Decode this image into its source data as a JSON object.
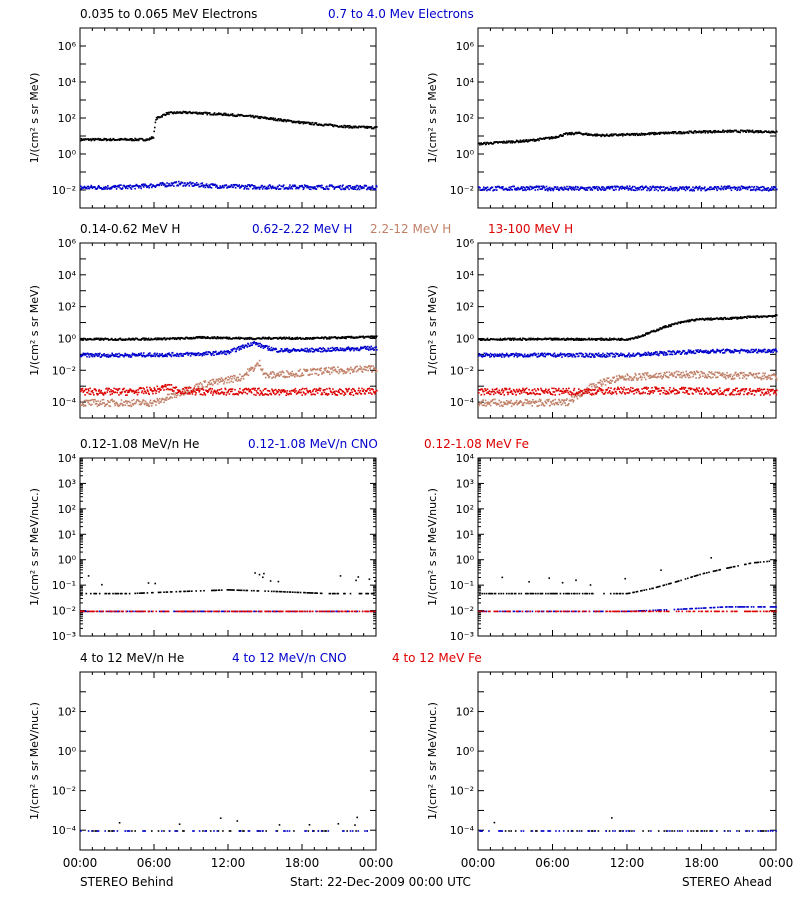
{
  "colors": {
    "black": "#000000",
    "blue": "#0000cc",
    "tan": "#c08068",
    "red": "#dd0000",
    "magenta": "#990099"
  },
  "x_ticks": [
    "00:00",
    "06:00",
    "12:00",
    "18:00",
    "00:00"
  ],
  "footer": {
    "left": "STEREO Behind",
    "center": "Start: 22-Dec-2009 00:00 UTC",
    "right": "STEREO Ahead"
  },
  "rows": [
    {
      "ylabel": "1/(cm² s sr MeV)",
      "ylog": [
        -3,
        7
      ],
      "yticks": [
        {
          "exp": -2,
          "label": "10⁻²"
        },
        {
          "exp": 0,
          "label": "10⁰"
        },
        {
          "exp": 2,
          "label": "10²"
        },
        {
          "exp": 4,
          "label": "10⁴"
        },
        {
          "exp": 6,
          "label": "10⁶"
        }
      ],
      "legend": [
        {
          "text": "0.035 to 0.065 MeV Electrons",
          "color": "black"
        },
        {
          "text": "0.7 to 4.0 Mev Electrons",
          "color": "blue"
        }
      ]
    },
    {
      "ylabel": "1/(cm² s sr MeV)",
      "ylog": [
        -5,
        6
      ],
      "yticks": [
        {
          "exp": -4,
          "label": "10⁻⁴"
        },
        {
          "exp": -2,
          "label": "10⁻²"
        },
        {
          "exp": 0,
          "label": "10⁰"
        },
        {
          "exp": 2,
          "label": "10²"
        },
        {
          "exp": 4,
          "label": "10⁴"
        },
        {
          "exp": 6,
          "label": "10⁶"
        }
      ],
      "legend": [
        {
          "text": "0.14-0.62 MeV H",
          "color": "black"
        },
        {
          "text": "0.62-2.22 MeV H",
          "color": "blue"
        },
        {
          "text": "2.2-12 MeV H",
          "color": "tan"
        },
        {
          "text": "13-100 MeV H",
          "color": "red"
        }
      ]
    },
    {
      "ylabel": "1/(cm² s sr MeV/nuc.)",
      "ylog": [
        -3,
        4
      ],
      "yticks": [
        {
          "exp": -3,
          "label": "10⁻³"
        },
        {
          "exp": -2,
          "label": "10⁻²"
        },
        {
          "exp": -1,
          "label": "10⁻¹"
        },
        {
          "exp": 0,
          "label": "10⁰"
        },
        {
          "exp": 1,
          "label": "10¹"
        },
        {
          "exp": 2,
          "label": "10²"
        },
        {
          "exp": 3,
          "label": "10³"
        },
        {
          "exp": 4,
          "label": "10⁴"
        }
      ],
      "legend": [
        {
          "text": "0.12-1.08 MeV/n He",
          "color": "black"
        },
        {
          "text": "0.12-1.08 MeV/n CNO",
          "color": "blue"
        },
        {
          "text": "0.12-1.08 MeV Fe",
          "color": "red"
        }
      ]
    },
    {
      "ylabel": "1/(cm² s sr MeV/nuc.)",
      "ylog": [
        -5,
        4
      ],
      "yticks": [
        {
          "exp": -4,
          "label": "10⁻⁴"
        },
        {
          "exp": -2,
          "label": "10⁻²"
        },
        {
          "exp": 0,
          "label": "10⁰"
        },
        {
          "exp": 2,
          "label": "10²"
        }
      ],
      "legend": [
        {
          "text": "4 to 12 MeV/n He",
          "color": "black"
        },
        {
          "text": "4 to 12 MeV/n CNO",
          "color": "blue"
        },
        {
          "text": "4 to 12 MeV Fe",
          "color": "red"
        }
      ]
    }
  ],
  "chart_data": [
    {
      "type": "scatter",
      "panel": "STEREO Behind",
      "row": 1,
      "xlim": [
        0,
        24
      ],
      "ylim": [
        0.001,
        10000000
      ],
      "yscale": "log",
      "series": [
        {
          "name": "0.035 to 0.065 MeV Electrons",
          "color": "black",
          "x": [
            0,
            2,
            4,
            5.5,
            5.9,
            6.1,
            7,
            8,
            9,
            10,
            12,
            14,
            16,
            18,
            20,
            22,
            24
          ],
          "y": [
            7,
            7,
            7,
            7,
            10,
            100,
            200,
            220,
            220,
            200,
            170,
            130,
            90,
            60,
            45,
            35,
            32
          ]
        },
        {
          "name": "0.7 to 4.0 Mev Electrons",
          "color": "blue",
          "x": [
            0,
            4,
            6,
            8,
            10,
            12,
            16,
            20,
            24
          ],
          "y": [
            0.015,
            0.016,
            0.02,
            0.025,
            0.02,
            0.017,
            0.016,
            0.016,
            0.015
          ]
        }
      ]
    },
    {
      "type": "scatter",
      "panel": "STEREO Ahead",
      "row": 1,
      "xlim": [
        0,
        24
      ],
      "ylim": [
        0.001,
        10000000
      ],
      "yscale": "log",
      "series": [
        {
          "name": "0.035 to 0.065 MeV Electrons",
          "color": "black",
          "x": [
            0,
            2,
            4,
            6,
            7,
            8,
            9,
            10,
            12,
            14,
            16,
            18,
            20,
            22,
            24
          ],
          "y": [
            4,
            5,
            6,
            9,
            14,
            16,
            13,
            12,
            13,
            15,
            17,
            19,
            20,
            20,
            19
          ]
        },
        {
          "name": "0.7 to 4.0 Mev Electrons",
          "color": "blue",
          "x": [
            0,
            4,
            8,
            12,
            16,
            20,
            24
          ],
          "y": [
            0.013,
            0.014,
            0.013,
            0.014,
            0.013,
            0.014,
            0.013
          ]
        }
      ]
    },
    {
      "type": "scatter",
      "panel": "STEREO Behind",
      "row": 2,
      "xlim": [
        0,
        24
      ],
      "ylim": [
        1e-05,
        1000000
      ],
      "yscale": "log",
      "series": [
        {
          "name": "0.14-0.62 MeV H",
          "color": "black",
          "x": [
            0,
            4,
            8,
            10,
            12,
            14,
            16,
            18,
            20,
            22,
            24
          ],
          "y": [
            1,
            1,
            1.1,
            1.3,
            1.2,
            1.1,
            1.2,
            1.1,
            1.2,
            1.3,
            1.4
          ]
        },
        {
          "name": "0.62-2.22 MeV H",
          "color": "blue",
          "x": [
            0,
            4,
            8,
            10,
            12,
            13,
            14,
            15,
            16,
            18,
            20,
            22,
            24
          ],
          "y": [
            0.1,
            0.1,
            0.11,
            0.12,
            0.15,
            0.3,
            0.6,
            0.3,
            0.2,
            0.2,
            0.22,
            0.25,
            0.28
          ]
        },
        {
          "name": "2.2-12 MeV H",
          "color": "tan",
          "x": [
            0,
            4,
            6,
            7,
            8,
            9,
            10,
            11,
            12,
            13,
            14,
            14.5,
            15,
            16,
            18,
            20,
            22,
            24
          ],
          "y": [
            0.0001,
            0.0001,
            0.0001,
            0.0002,
            0.0004,
            0.0008,
            0.0015,
            0.002,
            0.003,
            0.004,
            0.015,
            0.03,
            0.005,
            0.006,
            0.008,
            0.01,
            0.012,
            0.015
          ]
        },
        {
          "name": "13-100 MeV H",
          "color": "red",
          "x": [
            0,
            4,
            6,
            7,
            8,
            10,
            12,
            16,
            20,
            24
          ],
          "y": [
            0.0005,
            0.0005,
            0.0006,
            0.001,
            0.0006,
            0.0005,
            0.0005,
            0.0005,
            0.0005,
            0.0005
          ]
        }
      ]
    },
    {
      "type": "scatter",
      "panel": "STEREO Ahead",
      "row": 2,
      "xlim": [
        0,
        24
      ],
      "ylim": [
        1e-05,
        1000000
      ],
      "yscale": "log",
      "series": [
        {
          "name": "0.14-0.62 MeV H",
          "color": "black",
          "x": [
            0,
            4,
            8,
            12,
            13,
            14,
            15,
            16,
            17,
            18,
            20,
            22,
            24
          ],
          "y": [
            1,
            1,
            1,
            1,
            1.5,
            3,
            6,
            10,
            15,
            18,
            20,
            25,
            30
          ]
        },
        {
          "name": "0.62-2.22 MeV H",
          "color": "blue",
          "x": [
            0,
            4,
            8,
            12,
            14,
            16,
            18,
            20,
            22,
            24
          ],
          "y": [
            0.1,
            0.1,
            0.1,
            0.1,
            0.12,
            0.15,
            0.17,
            0.18,
            0.18,
            0.2
          ]
        },
        {
          "name": "2.2-12 MeV H",
          "color": "tan",
          "x": [
            0,
            4,
            7,
            8,
            9,
            10,
            11,
            12,
            14,
            16,
            18,
            20,
            22,
            24
          ],
          "y": [
            0.0001,
            0.0001,
            0.0001,
            0.0003,
            0.001,
            0.002,
            0.003,
            0.004,
            0.005,
            0.006,
            0.006,
            0.005,
            0.005,
            0.004
          ]
        },
        {
          "name": "13-100 MeV H",
          "color": "red",
          "x": [
            0,
            4,
            8,
            12,
            16,
            20,
            24
          ],
          "y": [
            0.0005,
            0.0005,
            0.0005,
            0.0006,
            0.0006,
            0.0005,
            0.0005
          ]
        }
      ]
    },
    {
      "type": "scatter",
      "panel": "STEREO Behind",
      "row": 3,
      "xlim": [
        0,
        24
      ],
      "ylim": [
        0.001,
        10000
      ],
      "yscale": "log",
      "series": [
        {
          "name": "0.12-1.08 MeV/n He",
          "color": "black",
          "x": [
            0,
            4,
            8,
            12,
            16,
            20,
            24
          ],
          "y": [
            0.05,
            0.05,
            0.06,
            0.07,
            0.06,
            0.05,
            0.05
          ]
        },
        {
          "name": "0.12-1.08 MeV/n CNO",
          "color": "blue",
          "x": [
            0,
            4,
            8,
            12,
            16,
            20,
            24
          ],
          "y": [
            0.01,
            0.01,
            0.01,
            0.01,
            0.01,
            0.01,
            0.01
          ]
        },
        {
          "name": "0.12-1.08 MeV Fe",
          "color": "red",
          "x": [
            0,
            8,
            16,
            24
          ],
          "y": [
            0.01,
            0.01,
            0.01,
            0.01
          ]
        }
      ]
    },
    {
      "type": "scatter",
      "panel": "STEREO Ahead",
      "row": 3,
      "xlim": [
        0,
        24
      ],
      "ylim": [
        0.001,
        10000
      ],
      "yscale": "log",
      "series": [
        {
          "name": "0.12-1.08 MeV/n He",
          "color": "black",
          "x": [
            0,
            4,
            8,
            12,
            14,
            16,
            18,
            20,
            22,
            24
          ],
          "y": [
            0.05,
            0.05,
            0.05,
            0.05,
            0.08,
            0.15,
            0.3,
            0.5,
            0.8,
            1
          ]
        },
        {
          "name": "0.12-1.08 MeV/n CNO",
          "color": "blue",
          "x": [
            0,
            4,
            8,
            12,
            16,
            20,
            24
          ],
          "y": [
            0.01,
            0.01,
            0.01,
            0.01,
            0.012,
            0.015,
            0.015
          ]
        },
        {
          "name": "0.12-1.08 MeV Fe",
          "color": "red",
          "x": [
            0,
            8,
            16,
            24
          ],
          "y": [
            0.01,
            0.01,
            0.01,
            0.01
          ]
        }
      ]
    },
    {
      "type": "scatter",
      "panel": "STEREO Behind",
      "row": 4,
      "xlim": [
        0,
        24
      ],
      "ylim": [
        1e-05,
        10000
      ],
      "yscale": "log",
      "series": [
        {
          "name": "4 to 12 MeV/n He",
          "color": "black",
          "x": [
            0,
            4,
            8,
            12,
            16,
            20,
            24
          ],
          "y": [
            0.0001,
            0.0001,
            0.0001,
            0.0001,
            0.0001,
            0.0001,
            0.0001
          ]
        },
        {
          "name": "4 to 12 MeV/n CNO",
          "color": "blue",
          "x": [
            0,
            4,
            8,
            12,
            16,
            20,
            24
          ],
          "y": [
            0.0001,
            0.0001,
            0.0001,
            0.0001,
            0.0001,
            0.0001,
            0.0001
          ]
        },
        {
          "name": "4 to 12 MeV Fe",
          "color": "red",
          "x": [],
          "y": []
        }
      ]
    },
    {
      "type": "scatter",
      "panel": "STEREO Ahead",
      "row": 4,
      "xlim": [
        0,
        24
      ],
      "ylim": [
        1e-05,
        10000
      ],
      "yscale": "log",
      "series": [
        {
          "name": "4 to 12 MeV/n He",
          "color": "black",
          "x": [
            0,
            4,
            8,
            12,
            16,
            20,
            24
          ],
          "y": [
            0.0001,
            0.0001,
            0.0001,
            0.0001,
            0.0001,
            0.0001,
            0.0001
          ]
        },
        {
          "name": "4 to 12 MeV/n CNO",
          "color": "blue",
          "x": [
            0,
            4,
            8,
            12,
            16,
            20,
            24
          ],
          "y": [
            0.0001,
            0.0001,
            0.0001,
            0.0001,
            0.0001,
            0.0001,
            0.0001
          ]
        },
        {
          "name": "4 to 12 MeV Fe",
          "color": "red",
          "x": [],
          "y": []
        }
      ]
    }
  ]
}
